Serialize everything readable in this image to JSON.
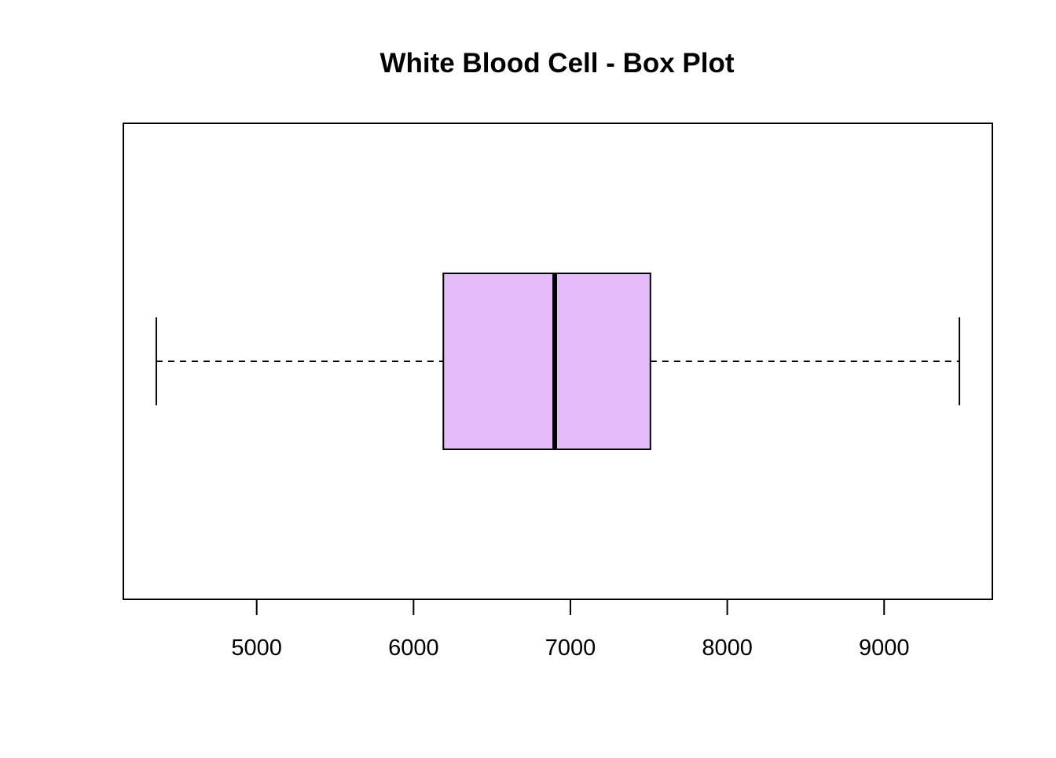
{
  "chart_data": {
    "type": "box",
    "orientation": "horizontal",
    "title": "White Blood Cell - Box Plot",
    "xlabel": "",
    "ylabel": "",
    "xlim": [
      4150,
      9690
    ],
    "ticks": [
      5000,
      6000,
      7000,
      8000,
      9000
    ],
    "tick_labels": [
      "5000",
      "6000",
      "7000",
      "8000",
      "9000"
    ],
    "box": {
      "whisker_low": 4360,
      "q1": 6190,
      "median": 6900,
      "q3": 7510,
      "whisker_high": 9480
    },
    "box_fill": "#E6BBFA",
    "grid": false,
    "legend": false
  }
}
